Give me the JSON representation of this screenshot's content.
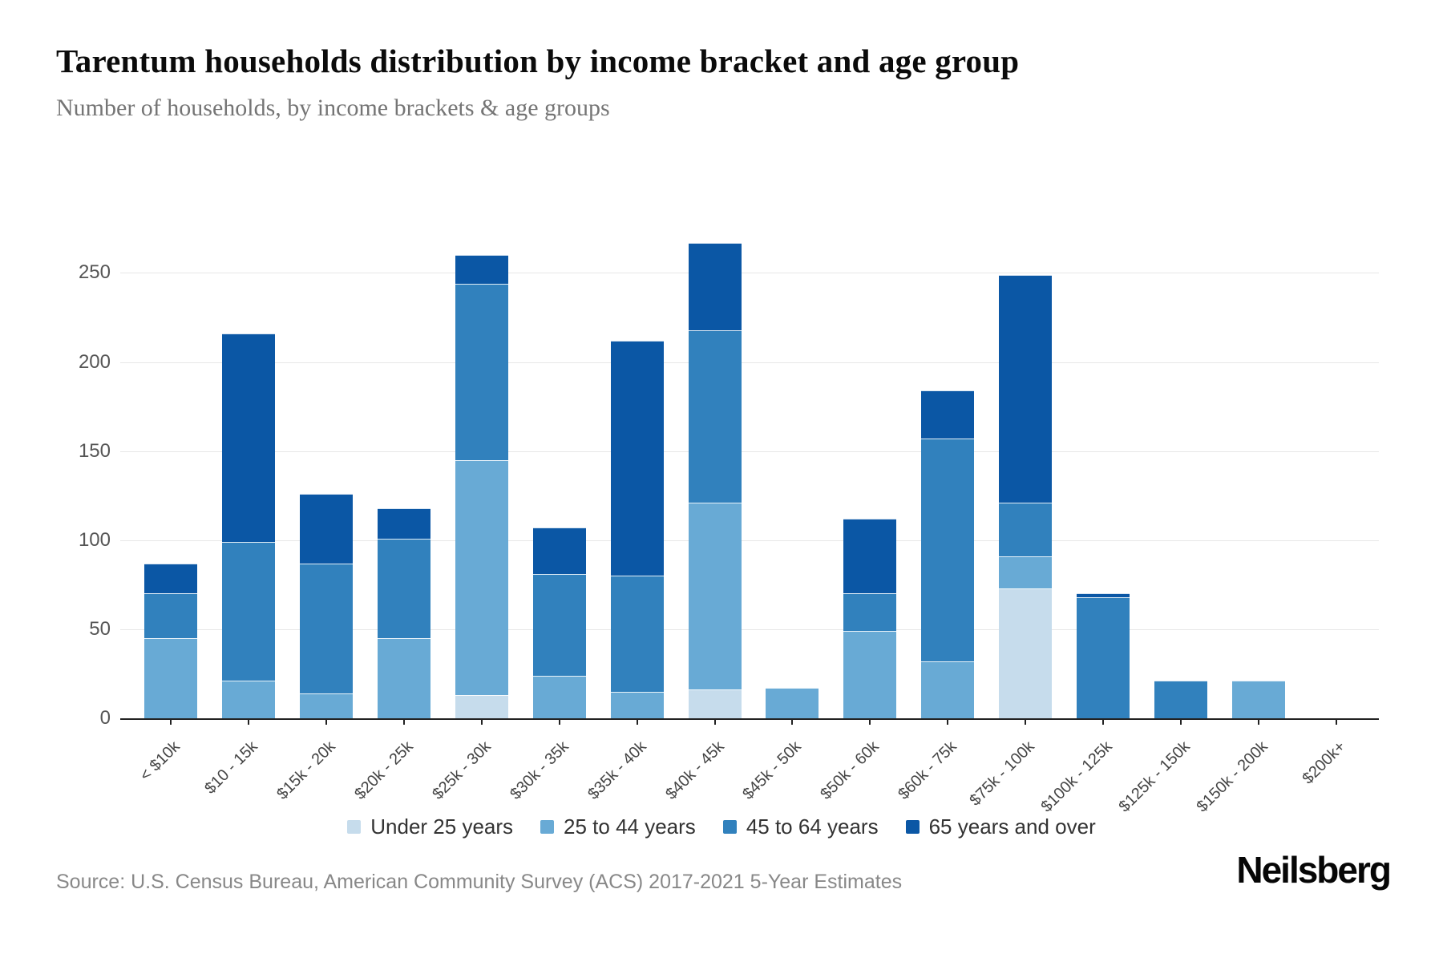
{
  "header": {
    "title": "Tarentum households distribution by income bracket and age group",
    "subtitle": "Number of households, by income brackets & age groups"
  },
  "footer": {
    "source": "Source: U.S. Census Bureau, American Community Survey (ACS) 2017-2021 5-Year Estimates",
    "brand": "Neilsberg"
  },
  "colors": {
    "under_25": "#c6dcec",
    "age_25_44": "#68aad5",
    "age_45_64": "#3181bd",
    "age_65_over": "#0b57a5",
    "gridline": "#e7e7e7",
    "axis": "#222222"
  },
  "chart_data": {
    "type": "bar",
    "stacked": true,
    "title": "Tarentum households distribution by income bracket and age group",
    "xlabel": "",
    "ylabel": "Number of households",
    "ylim": [
      0,
      270
    ],
    "yticks": [
      0,
      50,
      100,
      150,
      200,
      250
    ],
    "grid": true,
    "legend_position": "bottom",
    "categories": [
      "< $10k",
      "$10 - 15k",
      "$15k - 20k",
      "$20k - 25k",
      "$25k - 30k",
      "$30k - 35k",
      "$35k - 40k",
      "$40k - 45k",
      "$45k - 50k",
      "$50k - 60k",
      "$60k - 75k",
      "$75k - 100k",
      "$100k - 125k",
      "$125k - 150k",
      "$150k - 200k",
      "$200k+"
    ],
    "series": [
      {
        "name": "Under 25 years",
        "color": "#c6dcec",
        "values": [
          0,
          0,
          0,
          0,
          13,
          0,
          0,
          16,
          0,
          0,
          0,
          73,
          0,
          0,
          0,
          0
        ]
      },
      {
        "name": "25 to 44 years",
        "color": "#68aad5",
        "values": [
          45,
          21,
          14,
          45,
          132,
          24,
          15,
          105,
          17,
          49,
          32,
          18,
          0,
          0,
          21,
          0
        ]
      },
      {
        "name": "45 to 64 years",
        "color": "#3181bd",
        "values": [
          25,
          78,
          73,
          56,
          99,
          57,
          65,
          97,
          0,
          21,
          125,
          30,
          68,
          21,
          0,
          0
        ]
      },
      {
        "name": "65 years and over",
        "color": "#0b57a5",
        "values": [
          17,
          117,
          39,
          17,
          16,
          26,
          132,
          49,
          0,
          42,
          27,
          128,
          2,
          0,
          0,
          0
        ]
      }
    ],
    "totals": [
      87,
      216,
      126,
      118,
      260,
      107,
      212,
      267,
      17,
      112,
      184,
      249,
      70,
      21,
      21,
      0
    ]
  }
}
